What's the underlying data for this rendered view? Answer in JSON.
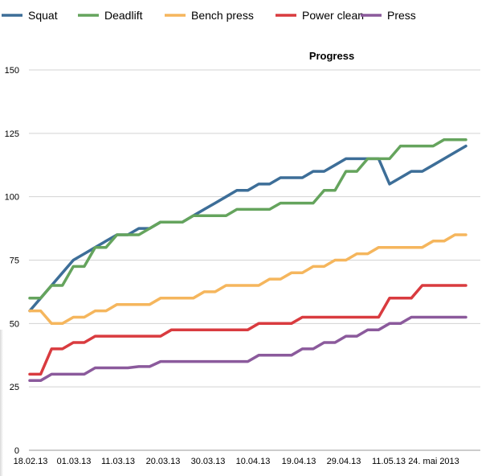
{
  "chart_data": {
    "type": "line",
    "title": "Progress",
    "xlabel": "",
    "ylabel": "",
    "ylim": [
      0,
      150
    ],
    "yticks": [
      0,
      25,
      50,
      75,
      100,
      125,
      150
    ],
    "xtick_labels": [
      "18.02.13",
      "01.03.13",
      "11.03.13",
      "20.03.13",
      "30.03.13",
      "10.04.13",
      "19.04.13",
      "29.04.13",
      "11.05.13",
      "24. mai 2013"
    ],
    "grid": true,
    "legend_position": "top",
    "series": [
      {
        "name": "Squat",
        "color": "#3d6e98",
        "values": [
          55,
          60,
          65,
          70,
          75,
          77.5,
          80,
          82.5,
          85,
          85,
          87.5,
          87.5,
          90,
          90,
          90,
          92.5,
          95,
          97.5,
          100,
          102.5,
          102.5,
          105,
          105,
          107.5,
          107.5,
          107.5,
          110,
          110,
          112.5,
          115,
          115,
          115,
          115,
          105,
          107.5,
          110,
          110,
          112.5,
          115,
          117.5,
          120
        ]
      },
      {
        "name": "Deadlift",
        "color": "#65a45d",
        "values": [
          60,
          60,
          65,
          65,
          72.5,
          72.5,
          80,
          80,
          85,
          85,
          85,
          87.5,
          90,
          90,
          90,
          92.5,
          92.5,
          92.5,
          92.5,
          95,
          95,
          95,
          95,
          97.5,
          97.5,
          97.5,
          97.5,
          102.5,
          102.5,
          110,
          110,
          115,
          115,
          115,
          120,
          120,
          120,
          120,
          122.5,
          122.5,
          122.5
        ]
      },
      {
        "name": "Bench press",
        "color": "#f5b65d",
        "values": [
          55,
          55,
          50,
          50,
          52.5,
          52.5,
          55,
          55,
          57.5,
          57.5,
          57.5,
          57.5,
          60,
          60,
          60,
          60,
          62.5,
          62.5,
          65,
          65,
          65,
          65,
          67.5,
          67.5,
          70,
          70,
          72.5,
          72.5,
          75,
          75,
          77.5,
          77.5,
          80,
          80,
          80,
          80,
          80,
          82.5,
          82.5,
          85,
          85
        ]
      },
      {
        "name": "Power clean",
        "color": "#d93b3f",
        "values": [
          30,
          30,
          40,
          40,
          42.5,
          42.5,
          45,
          45,
          45,
          45,
          45,
          45,
          45,
          47.5,
          47.5,
          47.5,
          47.5,
          47.5,
          47.5,
          47.5,
          47.5,
          50,
          50,
          50,
          50,
          52.5,
          52.5,
          52.5,
          52.5,
          52.5,
          52.5,
          52.5,
          52.5,
          60,
          60,
          60,
          65,
          65,
          65,
          65,
          65
        ]
      },
      {
        "name": "Press",
        "color": "#8b5a9c",
        "values": [
          27.5,
          27.5,
          30,
          30,
          30,
          30,
          32.5,
          32.5,
          32.5,
          32.5,
          33,
          33,
          35,
          35,
          35,
          35,
          35,
          35,
          35,
          35,
          35,
          37.5,
          37.5,
          37.5,
          37.5,
          40,
          40,
          42.5,
          42.5,
          45,
          45,
          47.5,
          47.5,
          50,
          50,
          52.5,
          52.5,
          52.5,
          52.5,
          52.5,
          52.5
        ]
      }
    ]
  }
}
